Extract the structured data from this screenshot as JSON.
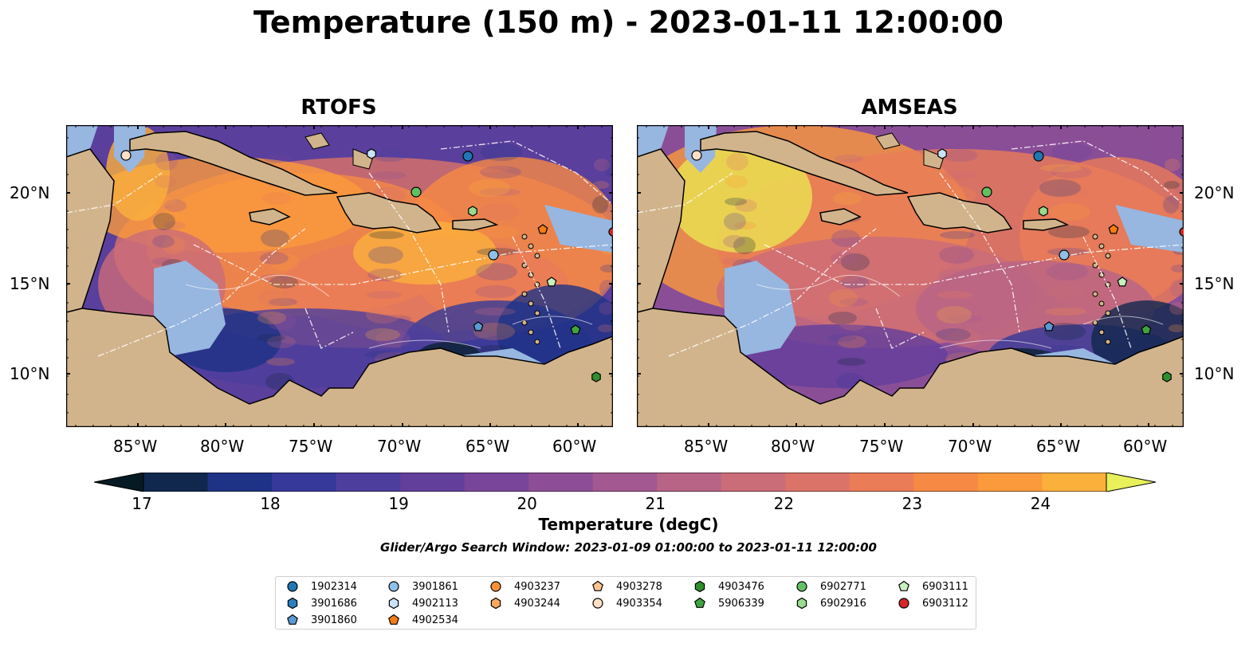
{
  "title": "Temperature (150 m) - 2023-01-11 12:00:00",
  "panels": [
    {
      "title": "RTOFS",
      "variant": "rtofs"
    },
    {
      "title": "AMSEAS",
      "variant": "amseas"
    }
  ],
  "lon_ticks": [
    "85°W",
    "80°W",
    "75°W",
    "70°W",
    "65°W",
    "60°W"
  ],
  "lat_ticks": [
    "20°N",
    "15°N",
    "10°N"
  ],
  "colorbar": {
    "ticks": [
      "17",
      "18",
      "19",
      "20",
      "21",
      "22",
      "23",
      "24"
    ],
    "label": "Temperature (degC)",
    "colors": [
      "#0b2232",
      "#10284e",
      "#1e3286",
      "#363999",
      "#4d3e9e",
      "#633f9c",
      "#78459a",
      "#8e4e97",
      "#a35891",
      "#b86487",
      "#cb6c79",
      "#db7368",
      "#ea7c57",
      "#f68a44",
      "#fb9a3c",
      "#fbb03c",
      "#f6c844",
      "#ebe352"
    ],
    "over_color": "#e8f05a",
    "under_color": "#061a24"
  },
  "search_window": "Glider/Argo Search Window: 2023-01-09 01:00:00 to 2023-01-11 12:00:00",
  "legend": [
    {
      "id": "1902314",
      "marker": "circle",
      "color": "#1f77b4"
    },
    {
      "id": "3901686",
      "marker": "hexagon",
      "color": "#2a7fbf"
    },
    {
      "id": "3901860",
      "marker": "pentagon",
      "color": "#5b9bd5"
    },
    {
      "id": "3901861",
      "marker": "circle",
      "color": "#8ec0e8"
    },
    {
      "id": "4902113",
      "marker": "hexagon",
      "color": "#c9e2f6"
    },
    {
      "id": "4902534",
      "marker": "pentagon",
      "color": "#f57d15"
    },
    {
      "id": "4903237",
      "marker": "circle",
      "color": "#f7923a"
    },
    {
      "id": "4903244",
      "marker": "hexagon",
      "color": "#f9a85e"
    },
    {
      "id": "4903278",
      "marker": "pentagon",
      "color": "#fbc48f"
    },
    {
      "id": "4903354",
      "marker": "circle",
      "color": "#fde0c5"
    },
    {
      "id": "4903476",
      "marker": "hexagon",
      "color": "#2f8f2f"
    },
    {
      "id": "5906339",
      "marker": "pentagon",
      "color": "#3fa43f"
    },
    {
      "id": "6902771",
      "marker": "circle",
      "color": "#62c062"
    },
    {
      "id": "6902916",
      "marker": "hexagon",
      "color": "#98da8e"
    },
    {
      "id": "6903111",
      "marker": "pentagon",
      "color": "#c8efc0"
    },
    {
      "id": "6903112",
      "marker": "circle",
      "color": "#d62728"
    }
  ],
  "map_colors": {
    "land": "#d2b48c",
    "shelf": "#97b6e0"
  }
}
